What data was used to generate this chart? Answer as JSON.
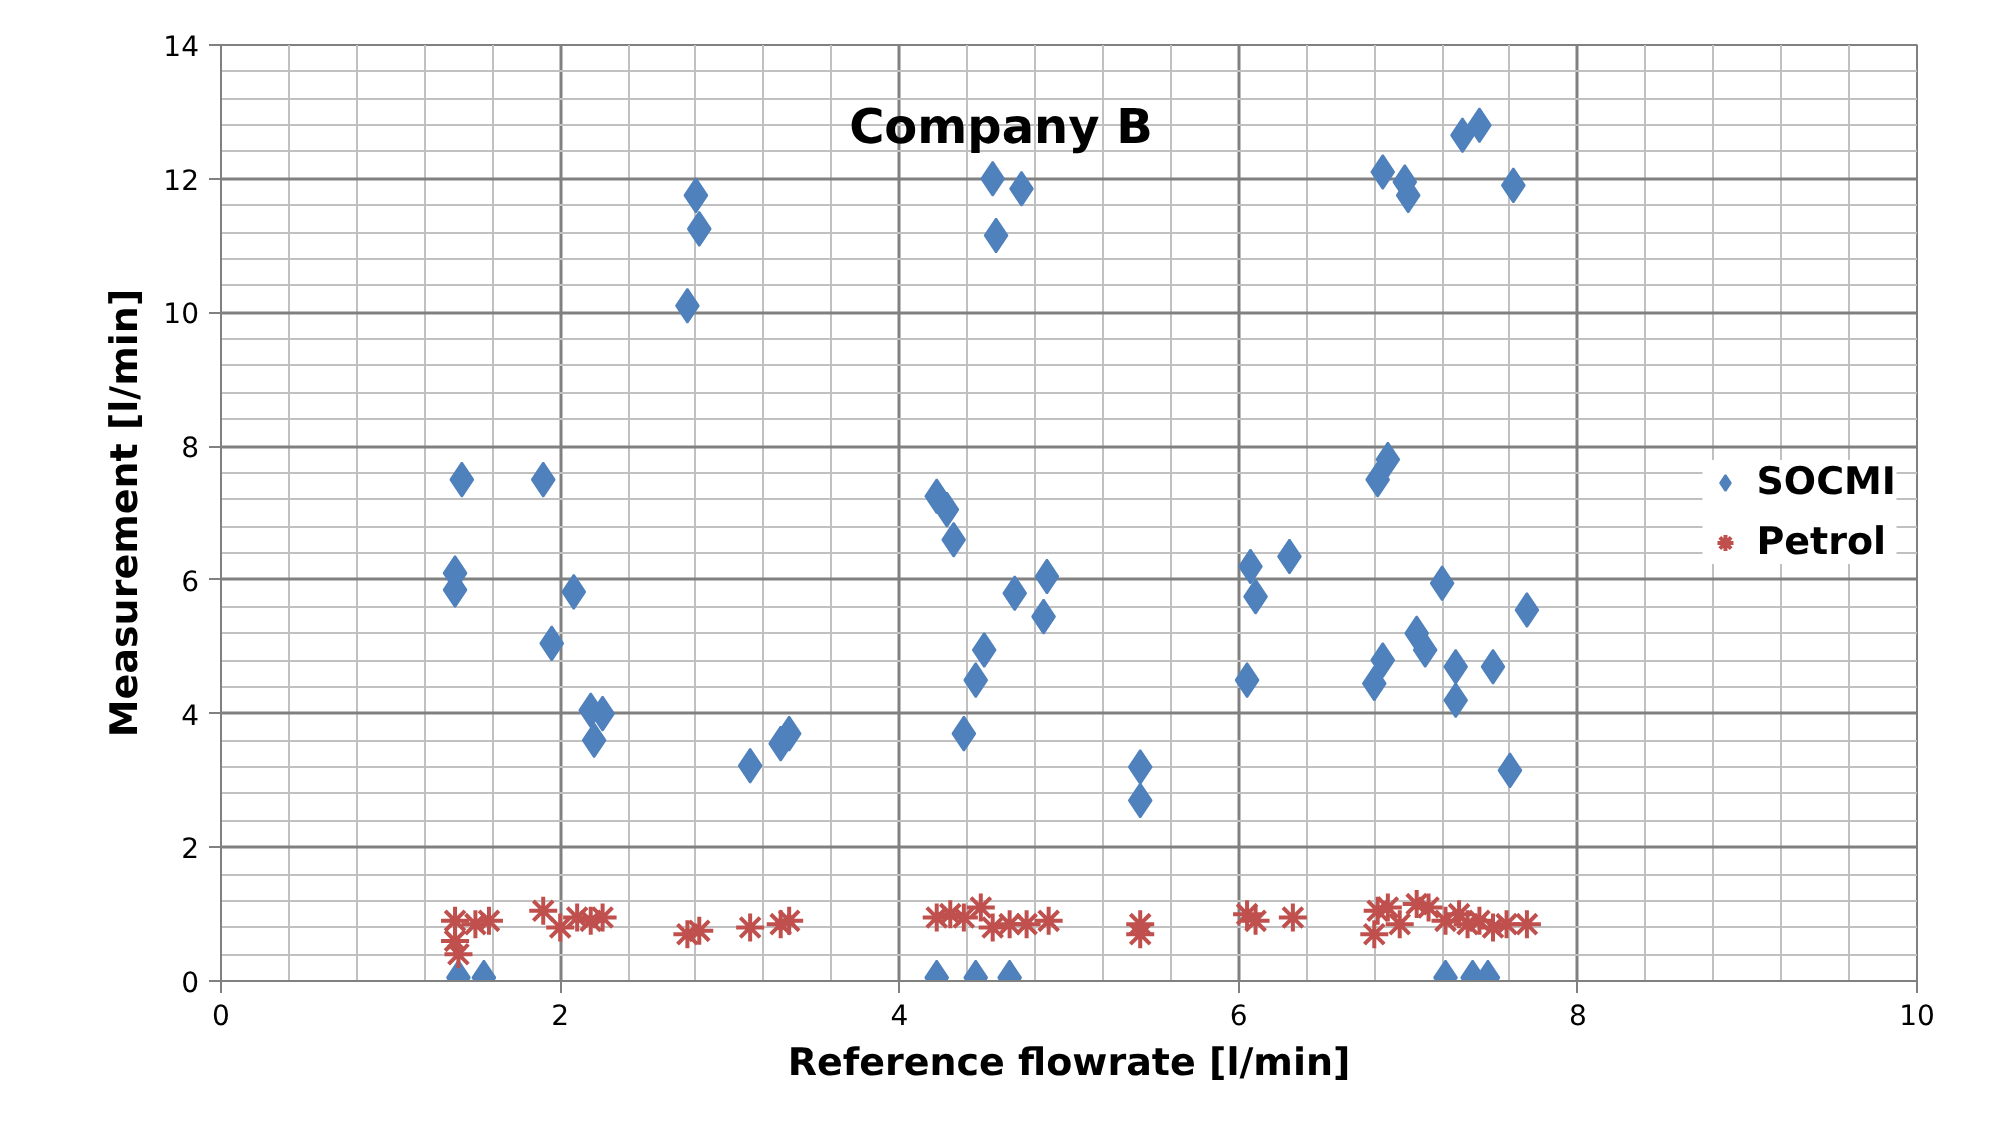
{
  "chart_data": {
    "type": "scatter",
    "title": "Company B",
    "xlabel": "Reference flowrate [l/min]",
    "ylabel": "Measurement [l/min]",
    "xlim": [
      0,
      10
    ],
    "xticks": [
      0,
      2,
      4,
      6,
      8,
      10
    ],
    "ylim": [
      0,
      14
    ],
    "yticks": [
      0,
      2,
      4,
      6,
      8,
      10,
      12,
      14
    ],
    "grid": true,
    "legend": "right",
    "series": [
      {
        "name": "SOCMI",
        "color": "#4f81bd",
        "marker": "diamond",
        "x": [
          1.38,
          1.38,
          1.42,
          1.9,
          1.95,
          2.08,
          2.18,
          2.2,
          2.25,
          2.75,
          2.8,
          2.82,
          3.12,
          3.3,
          3.35,
          4.22,
          4.28,
          4.32,
          4.38,
          4.45,
          4.5,
          4.55,
          4.57,
          4.68,
          4.72,
          4.85,
          4.87,
          5.42,
          5.42,
          6.05,
          6.07,
          6.1,
          6.3,
          6.8,
          6.82,
          6.85,
          6.85,
          6.88,
          6.98,
          7.0,
          7.05,
          7.1,
          7.2,
          7.28,
          7.28,
          7.32,
          7.42,
          7.5,
          7.6,
          7.62,
          7.7,
          1.4,
          1.55,
          4.22,
          4.45,
          4.65,
          7.22,
          7.38,
          7.47
        ],
        "values": [
          6.1,
          5.85,
          7.5,
          7.5,
          5.05,
          5.82,
          4.05,
          3.6,
          4.0,
          10.1,
          11.75,
          11.25,
          3.22,
          3.55,
          3.7,
          7.25,
          7.05,
          6.6,
          3.7,
          4.5,
          4.95,
          12.0,
          11.15,
          5.8,
          11.85,
          5.45,
          6.05,
          3.2,
          2.7,
          4.5,
          6.2,
          5.75,
          6.35,
          4.45,
          7.5,
          4.8,
          12.1,
          7.8,
          11.95,
          11.75,
          5.2,
          4.95,
          5.95,
          4.7,
          4.2,
          12.65,
          12.8,
          4.7,
          3.15,
          11.9,
          5.55,
          0.05,
          0.05,
          0.05,
          0.05,
          0.05,
          0.05,
          0.05,
          0.05
        ]
      },
      {
        "name": "Petrol",
        "color": "#c0504d",
        "marker": "cross",
        "x": [
          1.38,
          1.38,
          1.4,
          1.5,
          1.58,
          1.9,
          2.0,
          2.1,
          2.18,
          2.25,
          2.75,
          2.82,
          3.12,
          3.3,
          3.35,
          4.22,
          4.3,
          4.38,
          4.48,
          4.55,
          4.65,
          4.75,
          4.88,
          5.42,
          5.42,
          6.05,
          6.1,
          6.32,
          6.8,
          6.82,
          6.88,
          6.95,
          7.05,
          7.12,
          7.22,
          7.3,
          7.35,
          7.42,
          7.5,
          7.58,
          7.7
        ],
        "values": [
          0.9,
          0.6,
          0.4,
          0.85,
          0.9,
          1.05,
          0.8,
          0.95,
          0.9,
          0.95,
          0.7,
          0.75,
          0.8,
          0.85,
          0.9,
          0.95,
          1.0,
          0.95,
          1.1,
          0.8,
          0.85,
          0.85,
          0.9,
          0.7,
          0.85,
          1.0,
          0.9,
          0.95,
          0.7,
          1.05,
          1.1,
          0.85,
          1.15,
          1.1,
          0.9,
          1.0,
          0.85,
          0.9,
          0.8,
          0.85,
          0.85
        ]
      }
    ]
  }
}
